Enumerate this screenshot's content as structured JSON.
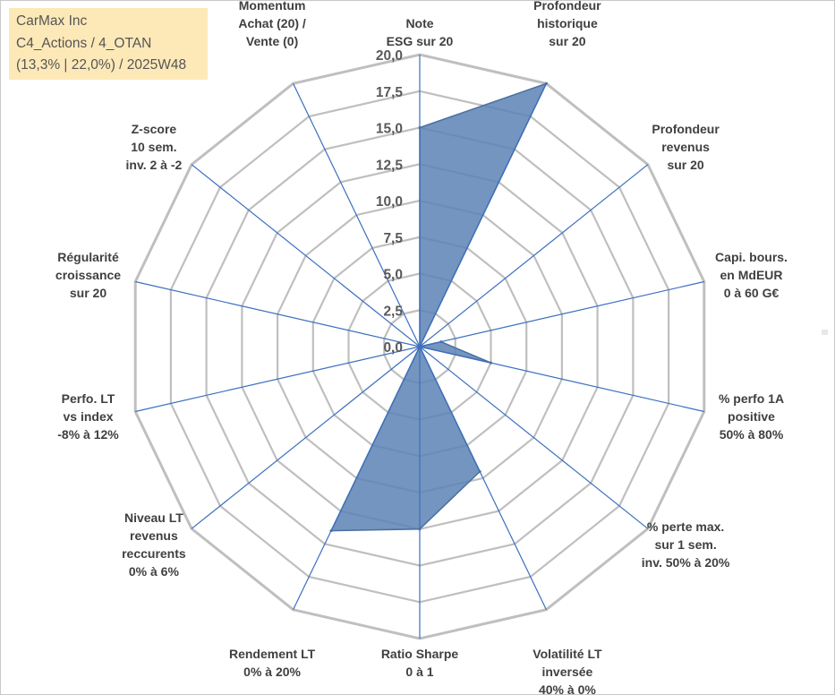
{
  "title_box": {
    "line1": "CarMax Inc",
    "line2": "C4_Actions / 4_OTAN",
    "line3": "(13,3% | 22,0%) / 2025W48"
  },
  "chart_data": {
    "type": "radar",
    "rlim": [
      0,
      20
    ],
    "ticks": [
      "0,0",
      "2,5",
      "5,0",
      "7,5",
      "10,0",
      "12,5",
      "15,0",
      "17,5",
      "20,0"
    ],
    "grid": true,
    "colors": {
      "fill": "#5b82b4",
      "stroke": "#4a6fa0",
      "grid": "#bfbfbf",
      "spoke": "#3b6fbf"
    },
    "axes": [
      {
        "label": [
          "Note",
          "ESG sur 20"
        ],
        "value": 15.0
      },
      {
        "label": [
          "Profondeur",
          "historique",
          "sur 20"
        ],
        "value": 20.0
      },
      {
        "label": [
          "Profondeur",
          "revenus",
          "sur 20"
        ],
        "value": 0.0
      },
      {
        "label": [
          "Capi. bours.",
          "en MdEUR",
          "0 à 60 G€"
        ],
        "value": 1.5
      },
      {
        "label": [
          "% perfo 1A",
          "positive",
          "50% à 80%"
        ],
        "value": 5.0
      },
      {
        "label": [
          "% perte max.",
          "sur 1 sem.",
          "inv. 50% à 20%"
        ],
        "value": 0.0
      },
      {
        "label": [
          "Volatilité LT",
          "inversée",
          "40% à 0%"
        ],
        "value": 9.5
      },
      {
        "label": [
          "Ratio Sharpe",
          "0 à 1"
        ],
        "value": 12.5
      },
      {
        "label": [
          "Rendement LT",
          "0% à 20%"
        ],
        "value": 14.0
      },
      {
        "label": [
          "Niveau LT",
          "revenus",
          "reccurents",
          "0% à 6%"
        ],
        "value": 0.0
      },
      {
        "label": [
          "Perfo. LT",
          "vs index",
          "-8% à 12%"
        ],
        "value": 0.0
      },
      {
        "label": [
          "Régularité",
          "croissance",
          "sur 20"
        ],
        "value": 0.0
      },
      {
        "label": [
          "Z-score",
          "10 sem.",
          "inv. 2 à -2"
        ],
        "value": 0.0
      },
      {
        "label": [
          "Momentum",
          "Achat (20) /",
          "Vente (0)"
        ],
        "value": 0.0
      }
    ]
  }
}
